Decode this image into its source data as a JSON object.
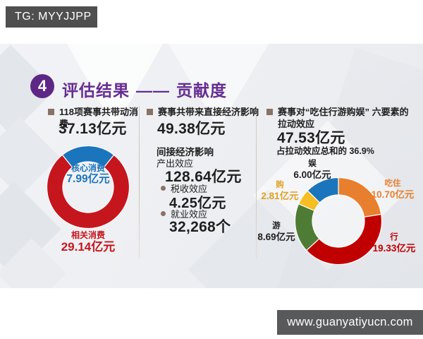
{
  "badge": {
    "text": "TG: MYYJJPP"
  },
  "watermark": {
    "text": "www.guanyatiyucn.com"
  },
  "title": {
    "number": "4",
    "text": "评估结果",
    "dash": "——",
    "suffix": "贡献度"
  },
  "colors": {
    "purple": "#662D91",
    "bullet": "#8A7265",
    "badge_bg": "#4F4F4F",
    "watermark_bg": "#58595B",
    "text_dark": "#1F1F1F"
  },
  "columns": {
    "left": {
      "bullet_label": "118项赛事共带动消费",
      "value": "37.13亿元"
    },
    "middle": {
      "bullet_label": "赛事共带来直接经济影响",
      "value": "49.38亿元",
      "indirect_title": "间接经济影响",
      "items": [
        {
          "label": "产出效应",
          "value": "128.64亿元"
        },
        {
          "label": "税收效应",
          "value": "4.25亿元"
        },
        {
          "label": "就业效应",
          "value": "32,268个"
        }
      ]
    },
    "right": {
      "bullet_label": "赛事对“吃住行游购娱” 六要素的拉动效应",
      "value": "47.53亿元",
      "share_note": "占拉动效应总和的 36.9%"
    }
  },
  "chart_data": [
    {
      "type": "pie",
      "name": "total-consumption-split",
      "title": "118项赛事共带动消费 37.13亿元",
      "unit": "亿元",
      "total": 37.13,
      "start_angle": -38.7,
      "slices": [
        {
          "label": "核心消费",
          "value": 7.99,
          "display": "7.99亿元",
          "color": "#1B75BC",
          "label_color": "#1B75BC"
        },
        {
          "label": "相关消费",
          "value": 29.14,
          "display": "29.14亿元",
          "color": "#C5161D",
          "label_color": "#C5161D"
        }
      ]
    },
    {
      "type": "pie",
      "name": "six-elements-pull-effect",
      "title": "赛事对“吃住行游购娱”六要素的拉动效应 47.53亿元",
      "unit": "亿元",
      "total": 47.53,
      "start_angle": 0,
      "slices": [
        {
          "label": "吃住",
          "value": 10.7,
          "display": "10.70亿元",
          "color": "#E87F2E",
          "label_color": "#E87F2E"
        },
        {
          "label": "行",
          "value": 19.33,
          "display": "19.33亿元",
          "color": "#C00000",
          "label_color": "#C00000"
        },
        {
          "label": "游",
          "value": 8.69,
          "display": "8.69亿元",
          "color": "#4E7C34",
          "label_color": "#1F1F1F"
        },
        {
          "label": "购",
          "value": 2.81,
          "display": "2.81亿元",
          "color": "#F5BE25",
          "label_color": "#DFA125"
        },
        {
          "label": "娱",
          "value": 6.0,
          "display": "6.00亿元",
          "color": "#1B75BC",
          "label_color": "#1F1F1F"
        }
      ]
    }
  ]
}
